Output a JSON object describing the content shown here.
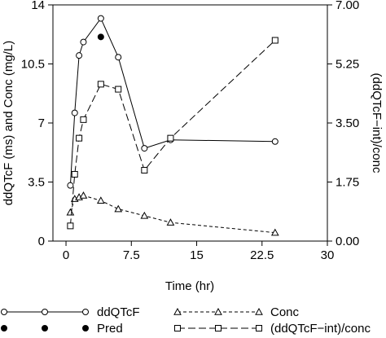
{
  "chart_data": {
    "type": "line",
    "xlabel": "Time (hr)",
    "ylabel_left": "ddQTcF (ms) and Conc (mg/L)",
    "ylabel_right": "(ddQTcF−int)/conc",
    "xlim": [
      -1.5,
      30
    ],
    "ylim_left": [
      0,
      14
    ],
    "ylim_right": [
      0,
      7
    ],
    "x_ticks": [
      0,
      7.5,
      15,
      22.5,
      30
    ],
    "x_tick_labels": [
      "0",
      "7.5",
      "15",
      "22.5",
      "30"
    ],
    "y_left_ticks": [
      0,
      3.5,
      7,
      10.5,
      14
    ],
    "y_left_tick_labels": [
      "0",
      "3.5",
      "7",
      "10.5",
      "14"
    ],
    "y_right_ticks": [
      0,
      1.75,
      3.5,
      5.25,
      7
    ],
    "y_right_tick_labels": [
      "0.00",
      "1.75",
      "3.50",
      "5.25",
      "7.00"
    ],
    "grid": false,
    "legend_position": "bottom",
    "series": [
      {
        "name": "ddQTcF",
        "axis": "left",
        "marker": "circle",
        "line": "solid",
        "x": [
          0.5,
          1,
          1.5,
          2,
          4,
          6,
          9,
          12,
          24
        ],
        "y": [
          3.3,
          7.6,
          11,
          11.8,
          13.2,
          10.9,
          5.5,
          6,
          5.9
        ]
      },
      {
        "name": "Pred",
        "axis": "left",
        "marker": "filled-circle",
        "line": "none",
        "x": [
          4
        ],
        "y": [
          12.1
        ]
      },
      {
        "name": "Conc",
        "axis": "left",
        "marker": "triangle",
        "line": "dashed",
        "x": [
          0.5,
          1,
          1.5,
          2,
          4,
          6,
          9,
          12,
          24
        ],
        "y": [
          1.7,
          2.5,
          2.6,
          2.7,
          2.4,
          1.9,
          1.5,
          1.1,
          0.5
        ]
      },
      {
        "name": "(ddQTcF−int)/conc",
        "axis": "right",
        "marker": "square",
        "line": "longdash",
        "x": [
          0.5,
          1,
          1.5,
          2,
          4,
          6,
          9,
          12,
          24
        ],
        "y": [
          0.45,
          1.98,
          3.05,
          3.6,
          4.65,
          4.5,
          2.1,
          3.05,
          5.95
        ]
      }
    ]
  }
}
